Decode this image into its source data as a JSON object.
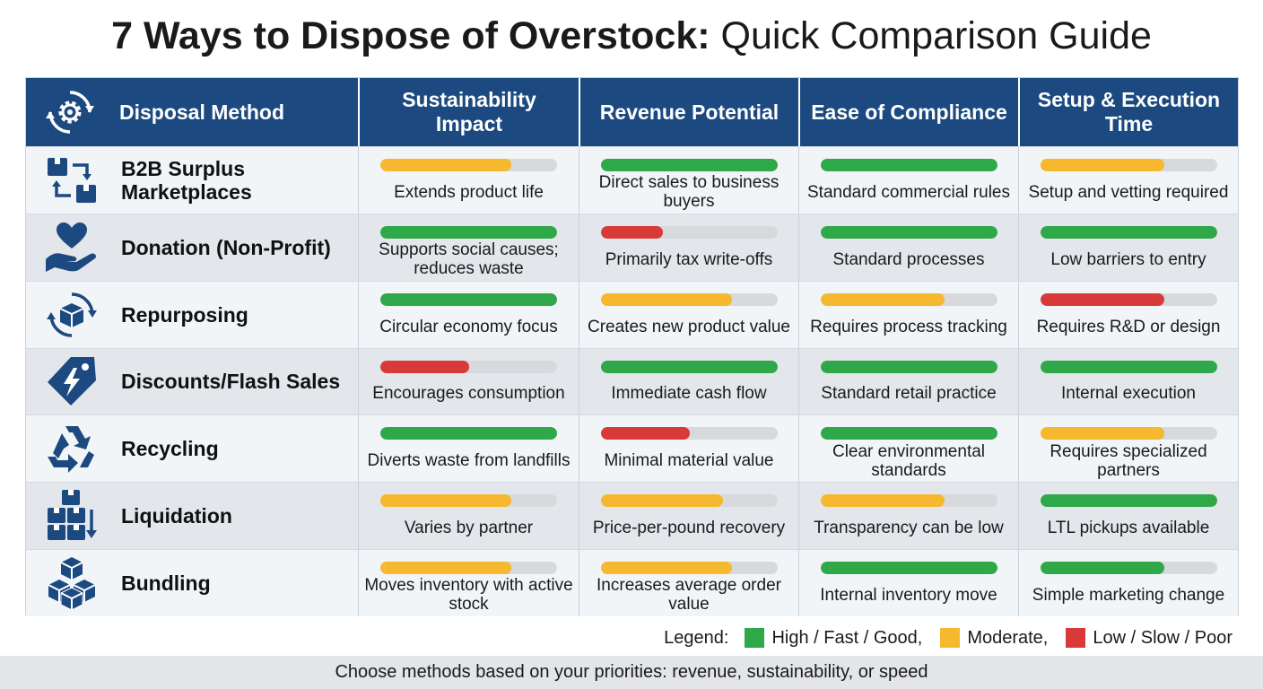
{
  "title": {
    "bold": "7 Ways to Dispose of Overstock:",
    "light": "Quick Comparison Guide"
  },
  "colors": {
    "header": "#1c4a80",
    "high": "#2fa84a",
    "moderate": "#f5b82e",
    "low": "#d83a3a",
    "icon": "#1c4a80"
  },
  "headers": [
    "Disposal Method",
    "Sustainability Impact",
    "Revenue Potential",
    "Ease of Compliance",
    "Setup & Execution Time"
  ],
  "header_icon": "gear-cycle-icon",
  "rows": [
    {
      "method": "B2B Surplus Marketplaces",
      "icon": "boxes-exchange-icon",
      "cells": [
        {
          "level": 0.74,
          "rating": "moderate",
          "text": "Extends product life"
        },
        {
          "level": 1.0,
          "rating": "high",
          "text": "Direct sales to business buyers"
        },
        {
          "level": 1.0,
          "rating": "high",
          "text": "Standard commercial rules"
        },
        {
          "level": 0.7,
          "rating": "moderate",
          "text": "Setup and vetting required"
        }
      ]
    },
    {
      "method": "Donation (Non-Profit)",
      "icon": "heart-hand-icon",
      "cells": [
        {
          "level": 1.0,
          "rating": "high",
          "text": "Supports social causes; reduces waste"
        },
        {
          "level": 0.35,
          "rating": "low",
          "text": "Primarily tax write-offs"
        },
        {
          "level": 1.0,
          "rating": "high",
          "text": "Standard processes"
        },
        {
          "level": 1.0,
          "rating": "high",
          "text": "Low barriers to entry"
        }
      ]
    },
    {
      "method": "Repurposing",
      "icon": "box-cycle-icon",
      "cells": [
        {
          "level": 1.0,
          "rating": "high",
          "text": "Circular economy focus"
        },
        {
          "level": 0.74,
          "rating": "moderate",
          "text": "Creates new product value"
        },
        {
          "level": 0.7,
          "rating": "moderate",
          "text": "Requires process tracking"
        },
        {
          "level": 0.7,
          "rating": "low",
          "text": "Requires R&D or design"
        }
      ]
    },
    {
      "method": "Discounts/Flash Sales",
      "icon": "lightning-tag-icon",
      "cells": [
        {
          "level": 0.5,
          "rating": "low",
          "text": "Encourages consumption"
        },
        {
          "level": 1.0,
          "rating": "high",
          "text": "Immediate cash flow"
        },
        {
          "level": 1.0,
          "rating": "high",
          "text": "Standard retail practice"
        },
        {
          "level": 1.0,
          "rating": "high",
          "text": "Internal execution"
        }
      ]
    },
    {
      "method": "Recycling",
      "icon": "recycle-icon",
      "cells": [
        {
          "level": 1.0,
          "rating": "high",
          "text": "Diverts waste from landfills"
        },
        {
          "level": 0.5,
          "rating": "low",
          "text": "Minimal material value"
        },
        {
          "level": 1.0,
          "rating": "high",
          "text": "Clear environmental standards"
        },
        {
          "level": 0.7,
          "rating": "moderate",
          "text": "Requires specialized partners"
        }
      ]
    },
    {
      "method": "Liquidation",
      "icon": "boxes-down-icon",
      "cells": [
        {
          "level": 0.74,
          "rating": "moderate",
          "text": "Varies by partner"
        },
        {
          "level": 0.69,
          "rating": "moderate",
          "text": "Price-per-pound recovery"
        },
        {
          "level": 0.7,
          "rating": "moderate",
          "text": "Transparency can be low"
        },
        {
          "level": 1.0,
          "rating": "high",
          "text": "LTL pickups available"
        }
      ]
    },
    {
      "method": "Bundling",
      "icon": "stacked-boxes-icon",
      "cells": [
        {
          "level": 0.74,
          "rating": "moderate",
          "text": "Moves inventory with active stock"
        },
        {
          "level": 0.74,
          "rating": "moderate",
          "text": "Increases average order value"
        },
        {
          "level": 1.0,
          "rating": "high",
          "text": "Internal inventory move"
        },
        {
          "level": 0.7,
          "rating": "high",
          "text": "Simple marketing change"
        }
      ]
    }
  ],
  "legend": {
    "label": "Legend:",
    "items": [
      {
        "rating": "high",
        "text": "High / Fast / Good,"
      },
      {
        "rating": "moderate",
        "text": "Moderate,"
      },
      {
        "rating": "low",
        "text": "Low / Slow / Poor"
      }
    ]
  },
  "footer": "Choose methods based on your priorities: revenue, sustainability, or speed"
}
